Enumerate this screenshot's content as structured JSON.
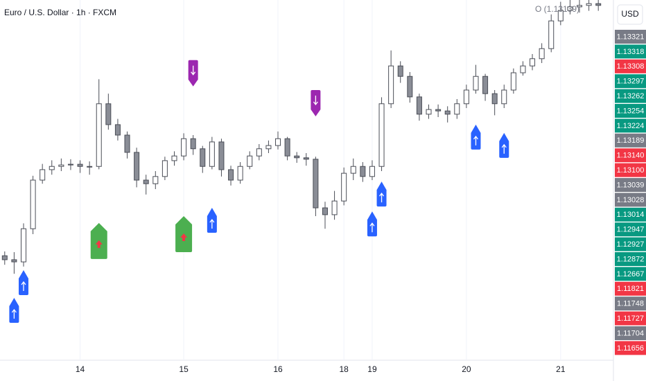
{
  "chart_data": {
    "type": "candlestick",
    "title": "Euro / U.S. Dollar · 1h · FXCM",
    "currency": "USD",
    "annotation": "O (1.13139)",
    "categories": [
      null,
      null,
      null,
      null,
      null,
      null,
      null,
      null,
      "14",
      null,
      null,
      null,
      null,
      null,
      null,
      null,
      null,
      null,
      null,
      "15",
      null,
      null,
      null,
      null,
      null,
      null,
      null,
      null,
      null,
      "16",
      null,
      null,
      null,
      null,
      null,
      null,
      "18",
      null,
      null,
      "19",
      null,
      null,
      null,
      null,
      null,
      null,
      null,
      null,
      null,
      "20",
      null,
      null,
      null,
      null,
      null,
      null,
      null,
      null,
      null,
      "21",
      null,
      null,
      null,
      null
    ],
    "open": [
      1.1269,
      1.12679,
      1.12673,
      1.12765,
      1.129,
      1.12929,
      1.12938,
      1.12942,
      1.12944,
      1.12938,
      1.12938,
      1.13112,
      1.13054,
      1.13025,
      1.12977,
      1.129,
      1.1289,
      1.1291,
      1.12954,
      1.12967,
      1.13015,
      1.12987,
      1.12938,
      1.13006,
      1.12929,
      1.129,
      1.12938,
      1.12967,
      1.12987,
      1.12996,
      1.13015,
      1.12967,
      1.12962,
      1.12958,
      1.12823,
      1.12804,
      1.12842,
      1.12919,
      1.12938,
      1.1291,
      1.12938,
      1.13112,
      1.13217,
      1.13188,
      1.13131,
      1.13083,
      1.13096,
      1.13092,
      1.13083,
      1.13112,
      1.1315,
      1.13188,
      1.1314,
      1.13112,
      1.1315,
      1.13198,
      1.13217,
      1.13237,
      1.13265,
      1.13342,
      1.13371,
      1.13381,
      1.13385,
      1.1339
    ],
    "high": [
      1.12702,
      1.127,
      1.1278,
      1.12912,
      1.12945,
      1.12955,
      1.1296,
      1.12958,
      1.12955,
      1.12952,
      1.1318,
      1.1314,
      1.1307,
      1.13035,
      1.1299,
      1.12915,
      1.12925,
      1.12965,
      1.1298,
      1.1303,
      1.13025,
      1.12995,
      1.1302,
      1.13015,
      1.1294,
      1.1295,
      1.1298,
      1.13,
      1.1301,
      1.13035,
      1.1302,
      1.12978,
      1.12975,
      1.12965,
      1.1284,
      1.1287,
      1.12935,
      1.1296,
      1.1295,
      1.12955,
      1.1313,
      1.1326,
      1.1323,
      1.132,
      1.1314,
      1.1311,
      1.1311,
      1.13105,
      1.13125,
      1.13165,
      1.1322,
      1.13195,
      1.1315,
      1.13165,
      1.1321,
      1.1323,
      1.1325,
      1.1328,
      1.1336,
      1.13395,
      1.134,
      1.134,
      1.134,
      1.134
    ],
    "low": [
      1.12665,
      1.1264,
      1.1266,
      1.1275,
      1.1289,
      1.12915,
      1.12925,
      1.12928,
      1.1292,
      1.12915,
      1.1293,
      1.1304,
      1.1301,
      1.1296,
      1.1288,
      1.1286,
      1.12875,
      1.129,
      1.1294,
      1.12955,
      1.1297,
      1.1292,
      1.1293,
      1.1291,
      1.12885,
      1.1289,
      1.1293,
      1.12955,
      1.12975,
      1.12985,
      1.12955,
      1.12948,
      1.1294,
      1.128,
      1.12765,
      1.1279,
      1.1283,
      1.129,
      1.12895,
      1.129,
      1.12925,
      1.131,
      1.1317,
      1.13115,
      1.13065,
      1.1307,
      1.13075,
      1.1306,
      1.1307,
      1.131,
      1.1314,
      1.1312,
      1.1308,
      1.131,
      1.1314,
      1.1319,
      1.13205,
      1.13225,
      1.13255,
      1.1333,
      1.1336,
      1.13365,
      1.1337,
      1.1337
    ],
    "close": [
      1.12679,
      1.12673,
      1.12765,
      1.129,
      1.12929,
      1.12938,
      1.12942,
      1.12944,
      1.12938,
      1.12938,
      1.13112,
      1.13054,
      1.13025,
      1.12977,
      1.129,
      1.1289,
      1.1291,
      1.12954,
      1.12967,
      1.13015,
      1.12987,
      1.12938,
      1.13006,
      1.12929,
      1.129,
      1.12938,
      1.12967,
      1.12987,
      1.12996,
      1.13015,
      1.12967,
      1.12962,
      1.12958,
      1.12823,
      1.12804,
      1.12842,
      1.12919,
      1.12938,
      1.1291,
      1.12938,
      1.13112,
      1.13217,
      1.13188,
      1.13131,
      1.13083,
      1.13096,
      1.13092,
      1.13083,
      1.13112,
      1.1315,
      1.13188,
      1.1314,
      1.13112,
      1.1315,
      1.13198,
      1.13217,
      1.13237,
      1.13265,
      1.13342,
      1.13371,
      1.13381,
      1.13385,
      1.1339,
      1.13385
    ],
    "up_color": "#ffffff",
    "down_color": "#8a8d96",
    "wick_color": "#4a4d56",
    "ylim": [
      1.124,
      1.134
    ],
    "grid": true,
    "signals": [
      {
        "kind": "buy",
        "category": 1,
        "price": 1.12573,
        "color": "#2962ff"
      },
      {
        "kind": "buy",
        "category": 2,
        "price": 1.1265,
        "color": "#2962ff"
      },
      {
        "kind": "strong-buy",
        "category": 10,
        "price": 1.12781,
        "color": "#4caf50"
      },
      {
        "kind": "strong-buy",
        "category": 19,
        "price": 1.128,
        "color": "#4caf50"
      },
      {
        "kind": "sell",
        "category": 20,
        "price": 1.1316,
        "color": "#9c27b0"
      },
      {
        "kind": "buy",
        "category": 22,
        "price": 1.12823,
        "color": "#2962ff"
      },
      {
        "kind": "sell",
        "category": 33,
        "price": 1.13077,
        "color": "#9c27b0"
      },
      {
        "kind": "buy",
        "category": 39,
        "price": 1.12813,
        "color": "#2962ff"
      },
      {
        "kind": "buy",
        "category": 40,
        "price": 1.12896,
        "color": "#2962ff"
      },
      {
        "kind": "buy",
        "category": 50,
        "price": 1.13054,
        "color": "#2962ff"
      },
      {
        "kind": "buy",
        "category": 53,
        "price": 1.13031,
        "color": "#2962ff"
      }
    ],
    "price_labels": [
      {
        "label": "1.13321",
        "color": "#787b86"
      },
      {
        "label": "1.13318",
        "color": "#089981"
      },
      {
        "label": "1.13308",
        "color": "#f23645"
      },
      {
        "label": "1.13297",
        "color": "#089981"
      },
      {
        "label": "1.13262",
        "color": "#089981"
      },
      {
        "label": "1.13254",
        "color": "#089981"
      },
      {
        "label": "1.13224",
        "color": "#089981"
      },
      {
        "label": "1.13189",
        "color": "#787b86"
      },
      {
        "label": "1.13140",
        "color": "#f23645"
      },
      {
        "label": "1.13100",
        "color": "#f23645"
      },
      {
        "label": "1.13039",
        "color": "#787b86"
      },
      {
        "label": "1.13028",
        "color": "#787b86"
      },
      {
        "label": "1.13014",
        "color": "#089981"
      },
      {
        "label": "1.12947",
        "color": "#089981"
      },
      {
        "label": "1.12927",
        "color": "#089981"
      },
      {
        "label": "1.12872",
        "color": "#089981"
      },
      {
        "label": "1.12667",
        "color": "#089981"
      },
      {
        "label": "1.11821",
        "color": "#f23645"
      },
      {
        "label": "1.11748",
        "color": "#787b86"
      },
      {
        "label": "1.11727",
        "color": "#f23645"
      },
      {
        "label": "1.11704",
        "color": "#787b86"
      },
      {
        "label": "1.11656",
        "color": "#f23645"
      }
    ]
  }
}
